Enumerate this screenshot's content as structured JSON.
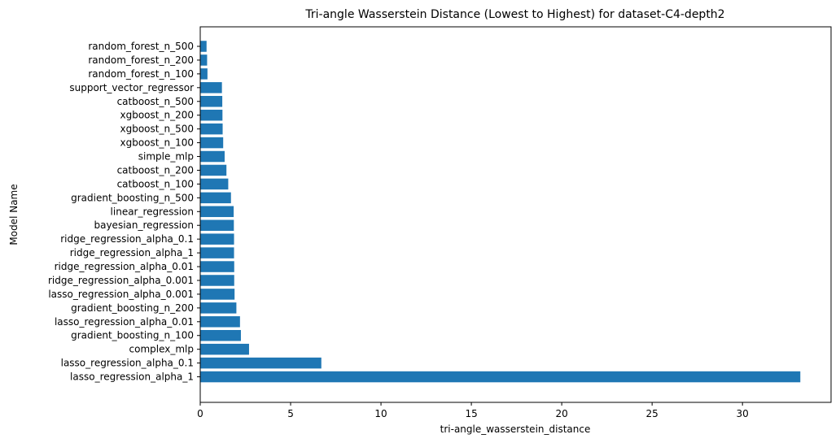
{
  "chart_data": {
    "type": "bar",
    "orientation": "horizontal",
    "title": "Tri-angle Wasserstein Distance (Lowest to Highest) for dataset-C4-depth2",
    "xlabel": "tri-angle_wasserstein_distance",
    "ylabel": "Model Name",
    "xlim": [
      0,
      34.9
    ],
    "xticks": [
      0,
      5,
      10,
      15,
      20,
      25,
      30
    ],
    "grid": false,
    "bar_color": "#1f77b4",
    "categories": [
      "random_forest_n_500",
      "random_forest_n_200",
      "random_forest_n_100",
      "support_vector_regressor",
      "catboost_n_500",
      "xgboost_n_200",
      "xgboost_n_500",
      "xgboost_n_100",
      "simple_mlp",
      "catboost_n_200",
      "catboost_n_100",
      "gradient_boosting_n_500",
      "linear_regression",
      "bayesian_regression",
      "ridge_regression_alpha_0.1",
      "ridge_regression_alpha_1",
      "ridge_regression_alpha_0.01",
      "ridge_regression_alpha_0.001",
      "lasso_regression_alpha_0.001",
      "gradient_boosting_n_200",
      "lasso_regression_alpha_0.01",
      "gradient_boosting_n_100",
      "complex_mlp",
      "lasso_regression_alpha_0.1",
      "lasso_regression_alpha_1"
    ],
    "values": [
      0.35,
      0.38,
      0.4,
      1.2,
      1.22,
      1.23,
      1.24,
      1.27,
      1.35,
      1.45,
      1.55,
      1.7,
      1.85,
      1.86,
      1.87,
      1.87,
      1.88,
      1.88,
      1.9,
      2.0,
      2.2,
      2.25,
      2.7,
      6.7,
      33.2
    ]
  }
}
